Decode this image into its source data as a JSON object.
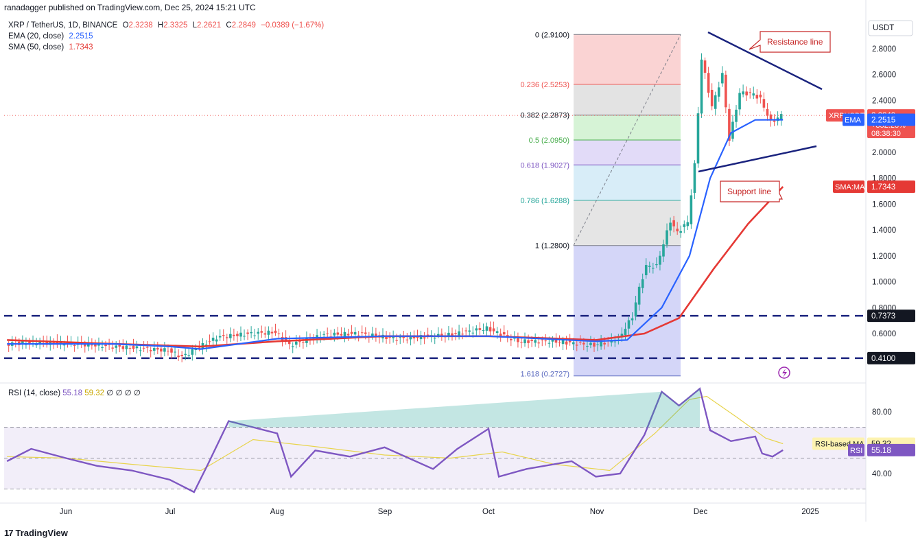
{
  "header": {
    "published": "ranadagger published on TradingView.com, Dec 25, 2024 15:21 UTC"
  },
  "legend": {
    "symbol": "XRP / TetherUS, 1D, BINANCE",
    "o_label": "O",
    "o_val": "2.3238",
    "h_label": "H",
    "h_val": "2.3325",
    "l_label": "L",
    "l_val": "2.2621",
    "c_label": "C",
    "c_val": "2.2849",
    "change": "−0.0389 (−1.67%)",
    "ema_label": "EMA (20, close)",
    "ema_val": "2.2515",
    "sma_label": "SMA (50, close)",
    "sma_val": "1.7343",
    "rsi_label": "RSI (14, close)",
    "rsi_val": "55.18",
    "rsi_ma_val": "59.32",
    "rsi_extra": "∅ ∅ ∅ ∅"
  },
  "colors": {
    "up": "#26a69a",
    "down": "#ef5350",
    "ema": "#2962ff",
    "sma": "#e53935",
    "rsi": "#7e57c2",
    "rsi_ma": "#e8d44d",
    "fib_text": "#131722"
  },
  "chart_data": [
    {
      "type": "line",
      "title": "",
      "symbol": "XRPUSDT",
      "currency": "USDT",
      "price_axis_ticks": [
        "2.8000",
        "2.6000",
        "2.4000",
        "2.2000",
        "2.0000",
        "1.8000",
        "1.6000",
        "1.4000",
        "1.2000",
        "1.0000",
        "0.8000",
        "0.6000"
      ],
      "ylim": [
        0.27,
        2.92
      ],
      "time_axis_ticks": [
        "Jun",
        "Jul",
        "Aug",
        "Sep",
        "Oct",
        "Nov",
        "Dec",
        "2025"
      ],
      "last_price": {
        "label": "XRPUSDT",
        "value": "2.2849",
        "change": "+352.28%",
        "countdown": "08:38:30"
      },
      "ema_badge": {
        "label": "EMA",
        "value": "2.2515"
      },
      "sma_badge": {
        "label": "SMA:MA",
        "value": "1.7343"
      },
      "horizontal_levels": [
        {
          "value": 0.7373,
          "label": "0.7373"
        },
        {
          "value": 0.41,
          "label": "0.4100"
        }
      ],
      "fib_levels": [
        {
          "ratio_label": "0",
          "price": 2.91,
          "label": "0 (2.9100)"
        },
        {
          "ratio_label": "0.236",
          "price": 2.5253,
          "label": "0.236 (2.5253)"
        },
        {
          "ratio_label": "0.382",
          "price": 2.2873,
          "label": "0.382 (2.2873)"
        },
        {
          "ratio_label": "0.5",
          "price": 2.095,
          "label": "0.5 (2.0950)"
        },
        {
          "ratio_label": "0.618",
          "price": 1.9027,
          "label": "0.618 (1.9027)"
        },
        {
          "ratio_label": "0.786",
          "price": 1.6288,
          "label": "0.786 (1.6288)"
        },
        {
          "ratio_label": "1",
          "price": 1.28,
          "label": "1 (1.2800)"
        },
        {
          "ratio_label": "1.618",
          "price": 0.2727,
          "label": "1.618 (0.2727)"
        }
      ],
      "annotations": [
        {
          "text": "Resistance line"
        },
        {
          "text": "Support line"
        }
      ],
      "series": [
        {
          "name": "XRP / TetherUS",
          "x": [
            "May 15",
            "May 25",
            "Jun 5",
            "Jun 20",
            "Jul 1",
            "Jul 5",
            "Jul 15",
            "Jul 25",
            "Aug 1",
            "Aug 5",
            "Aug 15",
            "Aug 25",
            "Sep 5",
            "Sep 20",
            "Oct 1",
            "Oct 10",
            "Oct 20",
            "Nov 1",
            "Nov 8",
            "Nov 12",
            "Nov 14",
            "Nov 16",
            "Nov 19",
            "Nov 23",
            "Nov 25",
            "Nov 28",
            "Nov 30",
            "Dec 2",
            "Dec 3",
            "Dec 5",
            "Dec 8",
            "Dec 10",
            "Dec 13",
            "Dec 17",
            "Dec 19",
            "Dec 22",
            "Dec 25"
          ],
          "values": [
            0.52,
            0.53,
            0.52,
            0.49,
            0.47,
            0.42,
            0.57,
            0.6,
            0.61,
            0.51,
            0.59,
            0.6,
            0.56,
            0.59,
            0.64,
            0.54,
            0.54,
            0.51,
            0.56,
            0.73,
            0.95,
            1.12,
            1.12,
            1.47,
            1.38,
            1.46,
            1.9,
            2.72,
            2.6,
            2.35,
            2.6,
            2.1,
            2.46,
            2.45,
            2.41,
            2.23,
            2.2849
          ]
        },
        {
          "name": "EMA (20, close)",
          "x": [
            "May 15",
            "Jun 15",
            "Jul 1",
            "Jul 10",
            "Aug 1",
            "Sep 1",
            "Oct 1",
            "Nov 1",
            "Nov 10",
            "Nov 20",
            "Nov 28",
            "Dec 4",
            "Dec 10",
            "Dec 17",
            "Dec 25"
          ],
          "values": [
            0.52,
            0.52,
            0.5,
            0.48,
            0.56,
            0.58,
            0.58,
            0.54,
            0.55,
            0.8,
            1.2,
            1.8,
            2.15,
            2.25,
            2.2515
          ]
        },
        {
          "name": "SMA (50, close)",
          "x": [
            "May 15",
            "Jun 15",
            "Jul 10",
            "Aug 1",
            "Sep 1",
            "Oct 1",
            "Nov 1",
            "Nov 15",
            "Nov 25",
            "Dec 5",
            "Dec 15",
            "Dec 25"
          ],
          "values": [
            0.55,
            0.52,
            0.5,
            0.54,
            0.58,
            0.58,
            0.55,
            0.6,
            0.72,
            1.1,
            1.45,
            1.7343
          ]
        }
      ]
    },
    {
      "type": "line",
      "title": "",
      "ylim": [
        20,
        100
      ],
      "ticks": [
        "80.00",
        "40.00"
      ],
      "band": [
        30,
        70
      ],
      "rsi_badge": {
        "label": "RSI",
        "value": "55.18"
      },
      "rsi_ma_badge": {
        "label": "RSI-based MA",
        "value": "59.32"
      },
      "series": [
        {
          "name": "RSI (14, close)",
          "x": [
            "May 15",
            "May 22",
            "Jun 1",
            "Jun 10",
            "Jun 20",
            "Jul 1",
            "Jul 8",
            "Jul 12",
            "Jul 18",
            "Jul 25",
            "Aug 1",
            "Aug 5",
            "Aug 12",
            "Aug 22",
            "Sep 1",
            "Sep 15",
            "Sep 22",
            "Oct 1",
            "Oct 4",
            "Oct 12",
            "Oct 25",
            "Nov 1",
            "Nov 8",
            "Nov 15",
            "Nov 20",
            "Nov 25",
            "Dec 1",
            "Dec 4",
            "Dec 10",
            "Dec 17",
            "Dec 19",
            "Dec 22",
            "Dec 25"
          ],
          "values": [
            48,
            56,
            50,
            45,
            42,
            36,
            28,
            46,
            74,
            70,
            66,
            38,
            55,
            51,
            57,
            43,
            56,
            69,
            38,
            43,
            48,
            38,
            40,
            65,
            93,
            84,
            95,
            68,
            61,
            64,
            53,
            51,
            55.18
          ]
        },
        {
          "name": "RSI-based MA",
          "x": [
            "May 15",
            "Jun 1",
            "Jun 20",
            "Jul 10",
            "Jul 25",
            "Aug 10",
            "Sep 1",
            "Sep 20",
            "Oct 5",
            "Oct 20",
            "Nov 5",
            "Nov 18",
            "Nov 28",
            "Dec 3",
            "Dec 12",
            "Dec 20",
            "Dec 25"
          ],
          "values": [
            51,
            50,
            46,
            42,
            62,
            58,
            52,
            50,
            54,
            46,
            42,
            66,
            88,
            90,
            76,
            63,
            59.32
          ]
        }
      ]
    }
  ]
}
